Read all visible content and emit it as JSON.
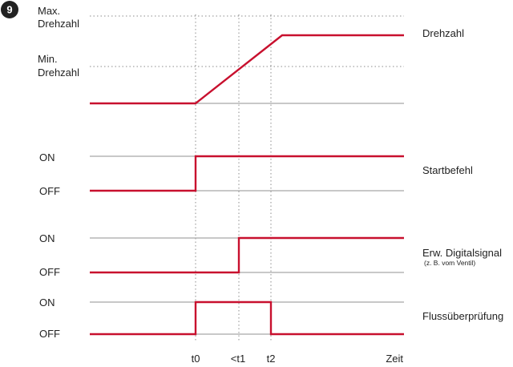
{
  "badge": {
    "number": "9"
  },
  "colors": {
    "signal": "#c8102e",
    "baseline": "#a6a6a6",
    "grid": "#8c8c8c",
    "badge": "#222222",
    "text": "#222222"
  },
  "speed_panel": {
    "max_label_line1": "Max.",
    "max_label_line2": "Drehzahl",
    "min_label_line1": "Min.",
    "min_label_line2": "Drehzahl",
    "title": "Drehzahl"
  },
  "start_panel": {
    "on_label": "ON",
    "off_label": "OFF",
    "title": "Startbefehl"
  },
  "digital_panel": {
    "on_label": "ON",
    "off_label": "OFF",
    "title": "Erw. Digitalsignal",
    "subtitle": "(z. B. vom Ventil)"
  },
  "flow_panel": {
    "on_label": "ON",
    "off_label": "OFF",
    "title": "Flussüberprüfung"
  },
  "time_axis": {
    "t0": "t0",
    "t1": "<t1",
    "t2": "t2",
    "end": "Zeit"
  }
}
